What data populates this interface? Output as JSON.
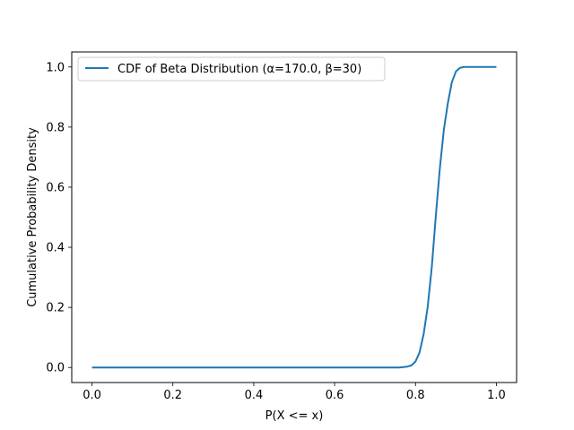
{
  "chart_data": {
    "type": "line",
    "title": "",
    "xlabel": "P(X <= x)",
    "ylabel": "Cumulative Probability Density",
    "xlim": [
      -0.05,
      1.05
    ],
    "ylim": [
      -0.05,
      1.05
    ],
    "xticks": [
      0.0,
      0.2,
      0.4,
      0.6,
      0.8,
      1.0
    ],
    "xtick_labels": [
      "0.0",
      "0.2",
      "0.4",
      "0.6",
      "0.8",
      "1.0"
    ],
    "yticks": [
      0.0,
      0.2,
      0.4,
      0.6,
      0.8,
      1.0
    ],
    "ytick_labels": [
      "0.0",
      "0.2",
      "0.4",
      "0.6",
      "0.8",
      "1.0"
    ],
    "grid": false,
    "legend_placement": "top-left",
    "series": [
      {
        "name": "CDF of Beta Distribution (α=170.0, β=30)",
        "color": "#1f77b4",
        "x": [
          0.0,
          0.1,
          0.2,
          0.3,
          0.4,
          0.5,
          0.6,
          0.7,
          0.76,
          0.78,
          0.79,
          0.8,
          0.81,
          0.82,
          0.83,
          0.84,
          0.85,
          0.86,
          0.87,
          0.88,
          0.89,
          0.9,
          0.91,
          0.92,
          0.93,
          0.95,
          1.0
        ],
        "y": [
          0.0,
          0.0,
          0.0,
          0.0,
          0.0,
          0.0,
          0.0,
          0.0,
          0.0,
          0.003,
          0.007,
          0.02,
          0.05,
          0.11,
          0.2,
          0.33,
          0.5,
          0.66,
          0.79,
          0.88,
          0.95,
          0.985,
          0.997,
          1.0,
          1.0,
          1.0,
          1.0
        ]
      }
    ]
  }
}
